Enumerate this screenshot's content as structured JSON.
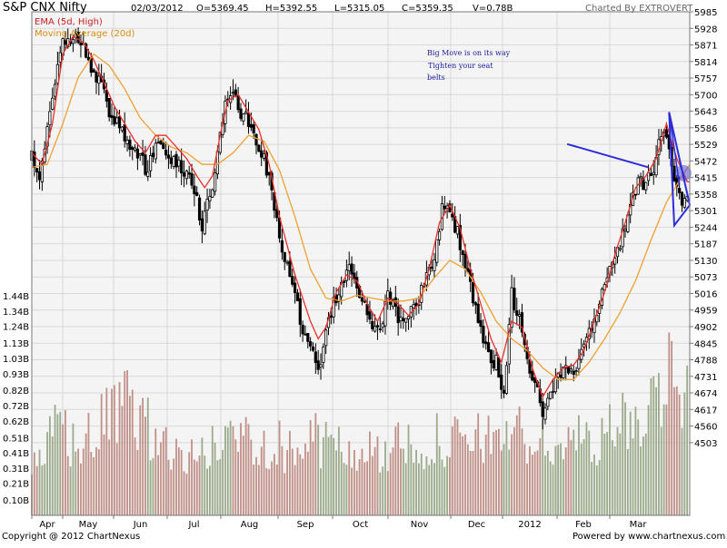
{
  "header": {
    "symbol": "S&P CNX Nifty",
    "date": "02/03/2012",
    "open": "O=5369.45",
    "high": "H=5392.55",
    "low": "L=5315.05",
    "close": "C=5359.35",
    "volume": "V=0.78B",
    "credit": "Charted By EXTROVERT"
  },
  "legend": {
    "ema": "EMA (5d, High)",
    "ma": "Moving Average (20d)"
  },
  "annotation": [
    "Big Move is on its way",
    "Tighten your seat",
    "belts"
  ],
  "footer": {
    "copyright": "Copyright @ 2012 ChartNexus",
    "powered": "Powered by www.chartnexus.com"
  },
  "colors": {
    "background": "#f4f4f4",
    "ema": "#e8302a",
    "ma": "#f0a030",
    "candle": "#000000",
    "trendline": "#2c2cd8",
    "annotation": "#1a1aa0",
    "volume_up": "#9aaa8a",
    "volume_down": "#c09088"
  },
  "chart_data": {
    "type": "candlestick",
    "price_axis": {
      "ylim": [
        4490,
        5985
      ],
      "ticks": [
        "5985",
        "5928",
        "5871",
        "5814",
        "5757",
        "5700",
        "5643",
        "5586",
        "5529",
        "5472",
        "5415",
        "5358",
        "5301",
        "5244",
        "5187",
        "5130",
        "5073",
        "5016",
        "4959",
        "4902",
        "4845",
        "4788",
        "4731",
        "4674",
        "4617",
        "4560",
        "4503"
      ]
    },
    "volume_axis": {
      "unit": "B",
      "ylim": [
        0,
        1.5
      ],
      "ticks": [
        "1.44B",
        "1.34B",
        "1.24B",
        "1.13B",
        "1.03B",
        "0.93B",
        "0.82B",
        "0.72B",
        "0.62B",
        "0.51B",
        "0.41B",
        "0.31B",
        "0.21B",
        "0.10B"
      ]
    },
    "x_labels": [
      "Apr",
      "May",
      "Jun",
      "Jul",
      "Aug",
      "Sep",
      "Oct",
      "Nov",
      "Dec",
      "2012",
      "Feb",
      "Mar"
    ],
    "series": [
      {
        "name": "EMA (5d, High)",
        "type": "line"
      },
      {
        "name": "Moving Average (20d)",
        "type": "line"
      }
    ],
    "close_path": [
      [
        0,
        5480
      ],
      [
        6,
        5420
      ],
      [
        12,
        5600
      ],
      [
        18,
        5760
      ],
      [
        24,
        5880
      ],
      [
        30,
        5870
      ],
      [
        36,
        5900
      ],
      [
        42,
        5840
      ],
      [
        48,
        5780
      ],
      [
        54,
        5720
      ],
      [
        60,
        5640
      ],
      [
        66,
        5600
      ],
      [
        72,
        5560
      ],
      [
        78,
        5510
      ],
      [
        84,
        5480
      ],
      [
        90,
        5430
      ],
      [
        96,
        5540
      ],
      [
        102,
        5520
      ],
      [
        108,
        5490
      ],
      [
        114,
        5470
      ],
      [
        120,
        5420
      ],
      [
        126,
        5380
      ],
      [
        132,
        5250
      ],
      [
        138,
        5350
      ],
      [
        144,
        5500
      ],
      [
        150,
        5680
      ],
      [
        156,
        5700
      ],
      [
        162,
        5640
      ],
      [
        168,
        5600
      ],
      [
        174,
        5540
      ],
      [
        180,
        5480
      ],
      [
        186,
        5360
      ],
      [
        192,
        5200
      ],
      [
        198,
        5100
      ],
      [
        204,
        5000
      ],
      [
        210,
        4900
      ],
      [
        216,
        4820
      ],
      [
        222,
        4760
      ],
      [
        228,
        4870
      ],
      [
        234,
        5000
      ],
      [
        240,
        5030
      ],
      [
        246,
        5090
      ],
      [
        252,
        5040
      ],
      [
        258,
        5000
      ],
      [
        264,
        4900
      ],
      [
        270,
        4880
      ],
      [
        276,
        5020
      ],
      [
        282,
        4950
      ],
      [
        288,
        4900
      ],
      [
        294,
        4950
      ],
      [
        300,
        5000
      ],
      [
        306,
        5090
      ],
      [
        312,
        5150
      ],
      [
        318,
        5300
      ],
      [
        324,
        5320
      ],
      [
        330,
        5220
      ],
      [
        336,
        5100
      ],
      [
        342,
        5000
      ],
      [
        348,
        4900
      ],
      [
        354,
        4800
      ],
      [
        360,
        4780
      ],
      [
        366,
        4650
      ],
      [
        372,
        5020
      ],
      [
        378,
        4920
      ],
      [
        384,
        4780
      ],
      [
        390,
        4700
      ],
      [
        396,
        4610
      ],
      [
        402,
        4690
      ],
      [
        408,
        4720
      ],
      [
        414,
        4770
      ],
      [
        420,
        4760
      ],
      [
        426,
        4800
      ],
      [
        432,
        4880
      ],
      [
        438,
        4960
      ],
      [
        444,
        5040
      ],
      [
        450,
        5140
      ],
      [
        456,
        5190
      ],
      [
        462,
        5280
      ],
      [
        468,
        5380
      ],
      [
        474,
        5400
      ],
      [
        480,
        5420
      ],
      [
        486,
        5530
      ],
      [
        492,
        5580
      ],
      [
        498,
        5420
      ],
      [
        504,
        5340
      ],
      [
        510,
        5360
      ]
    ],
    "ema_path": [
      [
        0,
        5500
      ],
      [
        8,
        5460
      ],
      [
        16,
        5600
      ],
      [
        24,
        5840
      ],
      [
        32,
        5900
      ],
      [
        40,
        5880
      ],
      [
        48,
        5820
      ],
      [
        56,
        5740
      ],
      [
        64,
        5660
      ],
      [
        72,
        5600
      ],
      [
        80,
        5540
      ],
      [
        88,
        5500
      ],
      [
        96,
        5560
      ],
      [
        104,
        5560
      ],
      [
        112,
        5520
      ],
      [
        120,
        5480
      ],
      [
        128,
        5420
      ],
      [
        134,
        5380
      ],
      [
        140,
        5420
      ],
      [
        146,
        5560
      ],
      [
        152,
        5680
      ],
      [
        160,
        5700
      ],
      [
        168,
        5640
      ],
      [
        176,
        5580
      ],
      [
        184,
        5460
      ],
      [
        192,
        5280
      ],
      [
        198,
        5180
      ],
      [
        204,
        5080
      ],
      [
        210,
        5000
      ],
      [
        216,
        4920
      ],
      [
        222,
        4860
      ],
      [
        228,
        4900
      ],
      [
        236,
        5020
      ],
      [
        244,
        5080
      ],
      [
        252,
        5060
      ],
      [
        260,
        4980
      ],
      [
        268,
        4920
      ],
      [
        276,
        5000
      ],
      [
        284,
        4980
      ],
      [
        292,
        4940
      ],
      [
        300,
        4980
      ],
      [
        308,
        5100
      ],
      [
        316,
        5260
      ],
      [
        324,
        5320
      ],
      [
        332,
        5240
      ],
      [
        340,
        5100
      ],
      [
        348,
        4980
      ],
      [
        356,
        4860
      ],
      [
        364,
        4780
      ],
      [
        372,
        4920
      ],
      [
        380,
        4900
      ],
      [
        388,
        4760
      ],
      [
        396,
        4660
      ],
      [
        404,
        4720
      ],
      [
        412,
        4760
      ],
      [
        420,
        4770
      ],
      [
        428,
        4820
      ],
      [
        436,
        4920
      ],
      [
        444,
        5020
      ],
      [
        452,
        5150
      ],
      [
        460,
        5260
      ],
      [
        468,
        5380
      ],
      [
        476,
        5420
      ],
      [
        484,
        5480
      ],
      [
        492,
        5600
      ],
      [
        500,
        5480
      ],
      [
        508,
        5400
      ],
      [
        510,
        5400
      ]
    ],
    "ma_path": [
      [
        0,
        5450
      ],
      [
        12,
        5460
      ],
      [
        24,
        5600
      ],
      [
        36,
        5760
      ],
      [
        48,
        5840
      ],
      [
        60,
        5800
      ],
      [
        72,
        5720
      ],
      [
        84,
        5620
      ],
      [
        96,
        5560
      ],
      [
        108,
        5520
      ],
      [
        120,
        5500
      ],
      [
        132,
        5460
      ],
      [
        144,
        5460
      ],
      [
        156,
        5500
      ],
      [
        168,
        5560
      ],
      [
        180,
        5540
      ],
      [
        192,
        5440
      ],
      [
        204,
        5280
      ],
      [
        216,
        5100
      ],
      [
        228,
        5000
      ],
      [
        240,
        4990
      ],
      [
        252,
        5010
      ],
      [
        264,
        5000
      ],
      [
        276,
        4990
      ],
      [
        288,
        4990
      ],
      [
        300,
        5000
      ],
      [
        312,
        5070
      ],
      [
        324,
        5130
      ],
      [
        336,
        5100
      ],
      [
        348,
        5020
      ],
      [
        360,
        4920
      ],
      [
        372,
        4860
      ],
      [
        384,
        4820
      ],
      [
        396,
        4760
      ],
      [
        408,
        4720
      ],
      [
        420,
        4720
      ],
      [
        432,
        4780
      ],
      [
        444,
        4860
      ],
      [
        456,
        4950
      ],
      [
        468,
        5060
      ],
      [
        480,
        5200
      ],
      [
        492,
        5330
      ],
      [
        504,
        5420
      ],
      [
        510,
        5460
      ]
    ],
    "volume_profile": [
      [
        0,
        0.3
      ],
      [
        20,
        0.62
      ],
      [
        40,
        0.5
      ],
      [
        60,
        0.7
      ],
      [
        80,
        0.8
      ],
      [
        100,
        0.5
      ],
      [
        120,
        0.42
      ],
      [
        140,
        0.48
      ],
      [
        160,
        0.6
      ],
      [
        180,
        0.55
      ],
      [
        200,
        0.48
      ],
      [
        220,
        0.55
      ],
      [
        240,
        0.48
      ],
      [
        260,
        0.46
      ],
      [
        280,
        0.48
      ],
      [
        300,
        0.52
      ],
      [
        320,
        0.55
      ],
      [
        340,
        0.5
      ],
      [
        360,
        0.62
      ],
      [
        380,
        0.58
      ],
      [
        400,
        0.5
      ],
      [
        420,
        0.52
      ],
      [
        440,
        0.6
      ],
      [
        460,
        0.65
      ],
      [
        480,
        0.8
      ],
      [
        490,
        1.1
      ],
      [
        500,
        1.2
      ],
      [
        505,
        0.85
      ],
      [
        510,
        0.8
      ]
    ],
    "annotation_shapes": {
      "trendline": [
        [
          415,
          5530
        ],
        [
          478,
          5450
        ]
      ],
      "wedge": [
        [
          494,
          5640
        ],
        [
          502,
          5390
        ],
        [
          498,
          5250
        ],
        [
          510,
          5320
        ]
      ],
      "circle_center": [
        505,
        5430
      ]
    }
  }
}
